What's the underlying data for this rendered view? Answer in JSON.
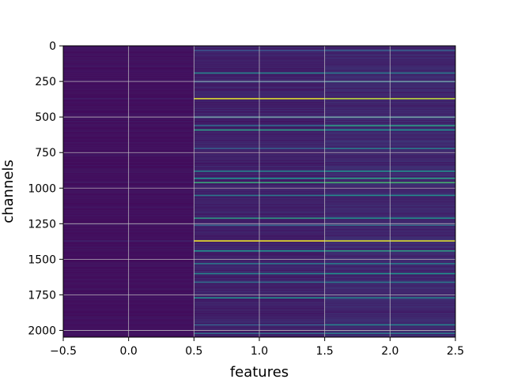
{
  "chart_data": {
    "type": "heatmap",
    "title": "",
    "xlabel": "features",
    "ylabel": "channels",
    "xlim": [
      -0.5,
      2.5
    ],
    "ylim": [
      2047.5,
      -0.5
    ],
    "x_ticks": [
      -0.5,
      0.0,
      0.5,
      1.0,
      1.5,
      2.0,
      2.5
    ],
    "x_tick_labels": [
      "−0.5",
      "0.0",
      "0.5",
      "1.0",
      "1.5",
      "2.0",
      "2.5"
    ],
    "y_ticks": [
      0,
      250,
      500,
      750,
      1000,
      1250,
      1500,
      1750,
      2000
    ],
    "y_tick_labels": [
      "0",
      "250",
      "500",
      "750",
      "1000",
      "1250",
      "1500",
      "1750",
      "2000"
    ],
    "grid": true,
    "colormap": "viridis",
    "columns": 3,
    "rows": 2048,
    "baseline_value": [
      0.05,
      0.1,
      0.12
    ],
    "highlighted_rows": [
      {
        "row": 30,
        "values": [
          0.05,
          0.25,
          0.3
        ]
      },
      {
        "row": 190,
        "values": [
          0.06,
          0.45,
          0.4
        ]
      },
      {
        "row": 250,
        "values": [
          0.05,
          0.3,
          0.38
        ]
      },
      {
        "row": 370,
        "values": [
          0.08,
          0.95,
          0.9
        ]
      },
      {
        "row": 500,
        "values": [
          0.05,
          0.4,
          0.45
        ]
      },
      {
        "row": 560,
        "values": [
          0.06,
          0.35,
          0.55
        ]
      },
      {
        "row": 590,
        "values": [
          0.05,
          0.55,
          0.5
        ]
      },
      {
        "row": 720,
        "values": [
          0.05,
          0.3,
          0.42
        ]
      },
      {
        "row": 880,
        "values": [
          0.06,
          0.45,
          0.5
        ]
      },
      {
        "row": 930,
        "values": [
          0.05,
          0.5,
          0.55
        ]
      },
      {
        "row": 960,
        "values": [
          0.07,
          0.6,
          0.65
        ]
      },
      {
        "row": 1050,
        "values": [
          0.05,
          0.4,
          0.48
        ]
      },
      {
        "row": 1210,
        "values": [
          0.05,
          0.55,
          0.5
        ]
      },
      {
        "row": 1260,
        "values": [
          0.06,
          0.3,
          0.35
        ]
      },
      {
        "row": 1370,
        "values": [
          0.1,
          0.98,
          0.95
        ]
      },
      {
        "row": 1440,
        "values": [
          0.05,
          0.5,
          0.55
        ]
      },
      {
        "row": 1530,
        "values": [
          0.06,
          0.4,
          0.42
        ]
      },
      {
        "row": 1600,
        "values": [
          0.05,
          0.45,
          0.5
        ]
      },
      {
        "row": 1660,
        "values": [
          0.05,
          0.35,
          0.4
        ]
      },
      {
        "row": 1770,
        "values": [
          0.06,
          0.5,
          0.45
        ]
      },
      {
        "row": 1960,
        "values": [
          0.05,
          0.3,
          0.45
        ]
      },
      {
        "row": 2020,
        "values": [
          0.06,
          0.35,
          0.4
        ]
      }
    ]
  }
}
